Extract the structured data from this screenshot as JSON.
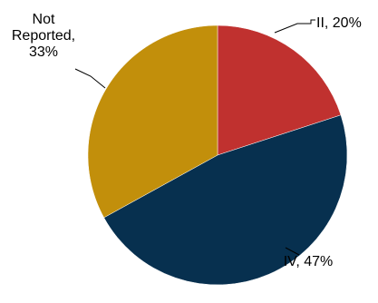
{
  "chart_data": {
    "type": "pie",
    "title": "",
    "series": [
      {
        "values": [
          20,
          47,
          33
        ],
        "categories": [
          "II",
          "IV",
          "Not Reported"
        ],
        "colors": [
          "#C0312F",
          "#07304F",
          "#C28F0B"
        ]
      }
    ],
    "slices": [
      {
        "category": "II",
        "value": 20,
        "color": "#C0312F",
        "label_lines": [
          "II, 20%"
        ]
      },
      {
        "category": "IV",
        "value": 47,
        "color": "#07304F",
        "label_lines": [
          "IV, 47%"
        ]
      },
      {
        "category": "Not Reported",
        "value": 33,
        "color": "#C28F0B",
        "label_lines": [
          "Not",
          "Reported,",
          "33%"
        ]
      }
    ],
    "start_angle": "12 o'clock",
    "direction": "clockwise",
    "legend": "none",
    "label_style": "outside with leader lines"
  }
}
